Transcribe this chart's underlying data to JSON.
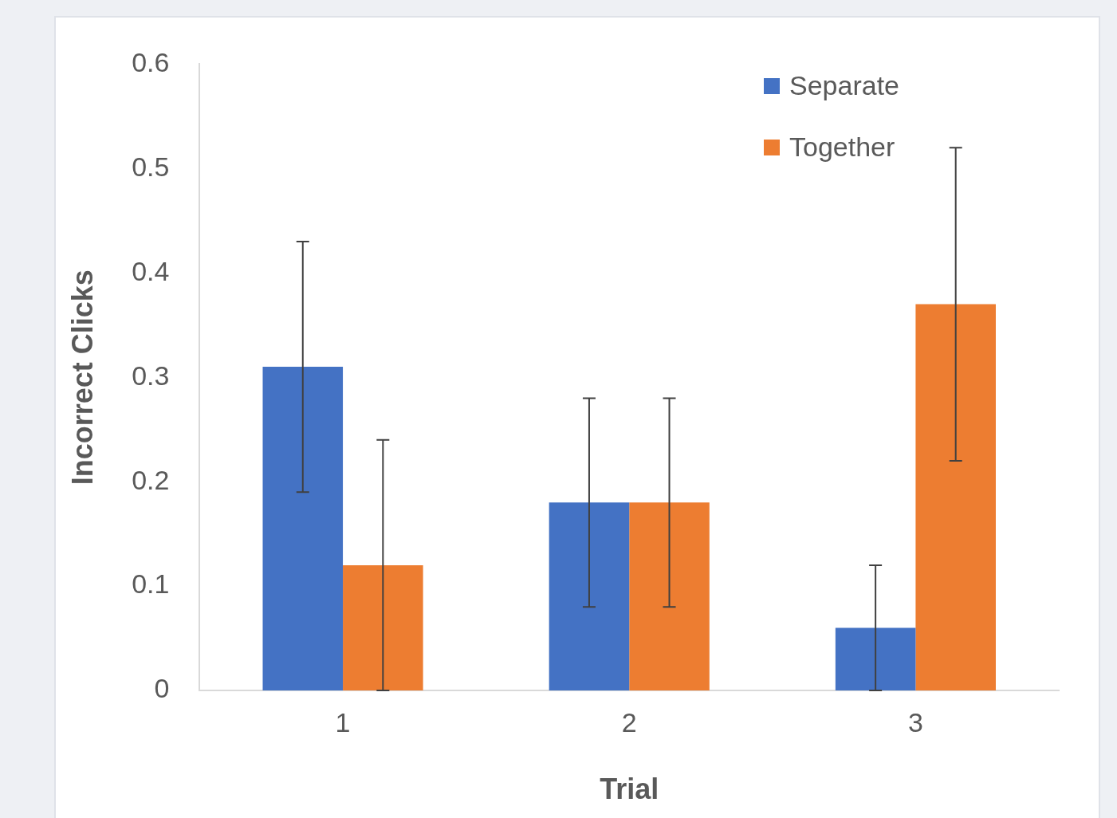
{
  "chart_data": {
    "type": "bar",
    "xlabel": "Trial",
    "ylabel": "Incorrect Clicks",
    "categories": [
      "1",
      "2",
      "3"
    ],
    "series": [
      {
        "name": "Separate",
        "color": "#4472c4",
        "values": [
          0.31,
          0.18,
          0.06
        ],
        "errors": [
          0.12,
          0.1,
          0.06
        ]
      },
      {
        "name": "Together",
        "color": "#ed7d31",
        "values": [
          0.12,
          0.18,
          0.37
        ],
        "errors": [
          0.12,
          0.1,
          0.15
        ]
      }
    ],
    "ylim": [
      0,
      0.6
    ],
    "yticks": [
      0,
      0.1,
      0.2,
      0.3,
      0.4,
      0.5,
      0.6
    ],
    "grid": false,
    "legend": "top right"
  }
}
